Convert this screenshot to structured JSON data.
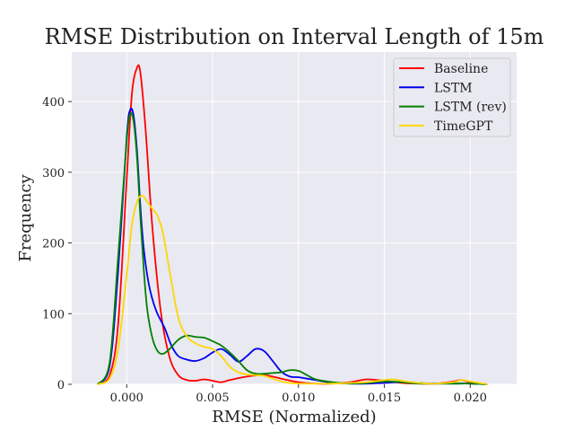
{
  "chart_data": {
    "type": "line",
    "title": "RMSE Distribution on Interval Length of 15m",
    "xlabel": "RMSE (Normalized)",
    "ylabel": "Frequency",
    "xlim": [
      -0.0032,
      0.0227
    ],
    "ylim": [
      0,
      470
    ],
    "xticks": [
      0.0,
      0.005,
      0.01,
      0.015,
      0.02
    ],
    "xtick_labels": [
      "0.000",
      "0.005",
      "0.010",
      "0.015",
      "0.020"
    ],
    "yticks": [
      0,
      100,
      200,
      300,
      400
    ],
    "ytick_labels": [
      "0",
      "100",
      "200",
      "300",
      "400"
    ],
    "grid": true,
    "background": "#e9e9f1",
    "legend_position": "top-right",
    "series": [
      {
        "name": "Baseline",
        "color": "#ff0000",
        "x": [
          -0.0017,
          -0.001,
          -0.0005,
          0.0,
          0.0003,
          0.0006,
          0.0008,
          0.0011,
          0.0015,
          0.002,
          0.0025,
          0.003,
          0.0035,
          0.004,
          0.0045,
          0.005,
          0.0055,
          0.006,
          0.007,
          0.008,
          0.009,
          0.01,
          0.011,
          0.012,
          0.013,
          0.014,
          0.015,
          0.016,
          0.017,
          0.018,
          0.019,
          0.0195,
          0.02,
          0.021
        ],
        "values": [
          0,
          12,
          85,
          290,
          410,
          448,
          440,
          360,
          220,
          100,
          38,
          13,
          6,
          5,
          7,
          5,
          3,
          6,
          11,
          13,
          8,
          3,
          1,
          1,
          3,
          7,
          5,
          2,
          1,
          1,
          4,
          6,
          3,
          0
        ]
      },
      {
        "name": "LSTM",
        "color": "#0000ee",
        "x": [
          -0.0017,
          -0.001,
          -0.0005,
          0.0,
          0.0002,
          0.0004,
          0.0006,
          0.0008,
          0.001,
          0.0013,
          0.0017,
          0.0022,
          0.0026,
          0.003,
          0.0035,
          0.004,
          0.0045,
          0.005,
          0.0055,
          0.006,
          0.0065,
          0.007,
          0.0075,
          0.008,
          0.0085,
          0.009,
          0.0095,
          0.01,
          0.0105,
          0.011,
          0.012,
          0.013,
          0.014,
          0.015,
          0.016,
          0.017,
          0.018,
          0.019,
          0.02,
          0.021
        ],
        "values": [
          0,
          25,
          160,
          350,
          388,
          380,
          330,
          250,
          190,
          140,
          105,
          80,
          55,
          40,
          35,
          33,
          37,
          45,
          50,
          42,
          32,
          40,
          50,
          47,
          33,
          18,
          11,
          10,
          8,
          6,
          2,
          1,
          1,
          2,
          3,
          2,
          1,
          1,
          1,
          0
        ]
      },
      {
        "name": "LSTM (rev)",
        "color": "#008000",
        "x": [
          -0.0017,
          -0.001,
          -0.0005,
          0.0,
          0.0002,
          0.0004,
          0.0006,
          0.0008,
          0.001,
          0.0012,
          0.0015,
          0.0018,
          0.0021,
          0.0025,
          0.003,
          0.0035,
          0.004,
          0.0045,
          0.005,
          0.0055,
          0.006,
          0.0065,
          0.007,
          0.0075,
          0.008,
          0.0085,
          0.009,
          0.0095,
          0.01,
          0.0105,
          0.011,
          0.012,
          0.013,
          0.014,
          0.015,
          0.016,
          0.017,
          0.018,
          0.019,
          0.02,
          0.021
        ],
        "values": [
          0,
          30,
          180,
          345,
          382,
          372,
          320,
          235,
          160,
          105,
          65,
          47,
          43,
          50,
          63,
          69,
          67,
          66,
          61,
          55,
          45,
          33,
          20,
          15,
          15,
          16,
          17,
          20,
          19,
          13,
          7,
          3,
          1,
          2,
          4,
          3,
          1,
          1,
          1,
          1,
          0
        ]
      },
      {
        "name": "TimeGPT",
        "color": "#ffd700",
        "x": [
          -0.0017,
          -0.001,
          -0.0005,
          0.0,
          0.0003,
          0.0006,
          0.0009,
          0.0012,
          0.0015,
          0.0018,
          0.0021,
          0.0025,
          0.003,
          0.0035,
          0.004,
          0.0045,
          0.005,
          0.0055,
          0.006,
          0.0065,
          0.007,
          0.0075,
          0.008,
          0.0085,
          0.009,
          0.0095,
          0.01,
          0.011,
          0.012,
          0.013,
          0.014,
          0.015,
          0.0155,
          0.016,
          0.017,
          0.018,
          0.019,
          0.0195,
          0.02,
          0.021
        ],
        "values": [
          0,
          8,
          50,
          155,
          225,
          258,
          267,
          258,
          248,
          238,
          215,
          160,
          95,
          68,
          58,
          53,
          50,
          40,
          25,
          17,
          14,
          13,
          12,
          8,
          4,
          2,
          1,
          1,
          1,
          2,
          3,
          6,
          7,
          5,
          2,
          1,
          3,
          6,
          4,
          0
        ]
      }
    ]
  }
}
